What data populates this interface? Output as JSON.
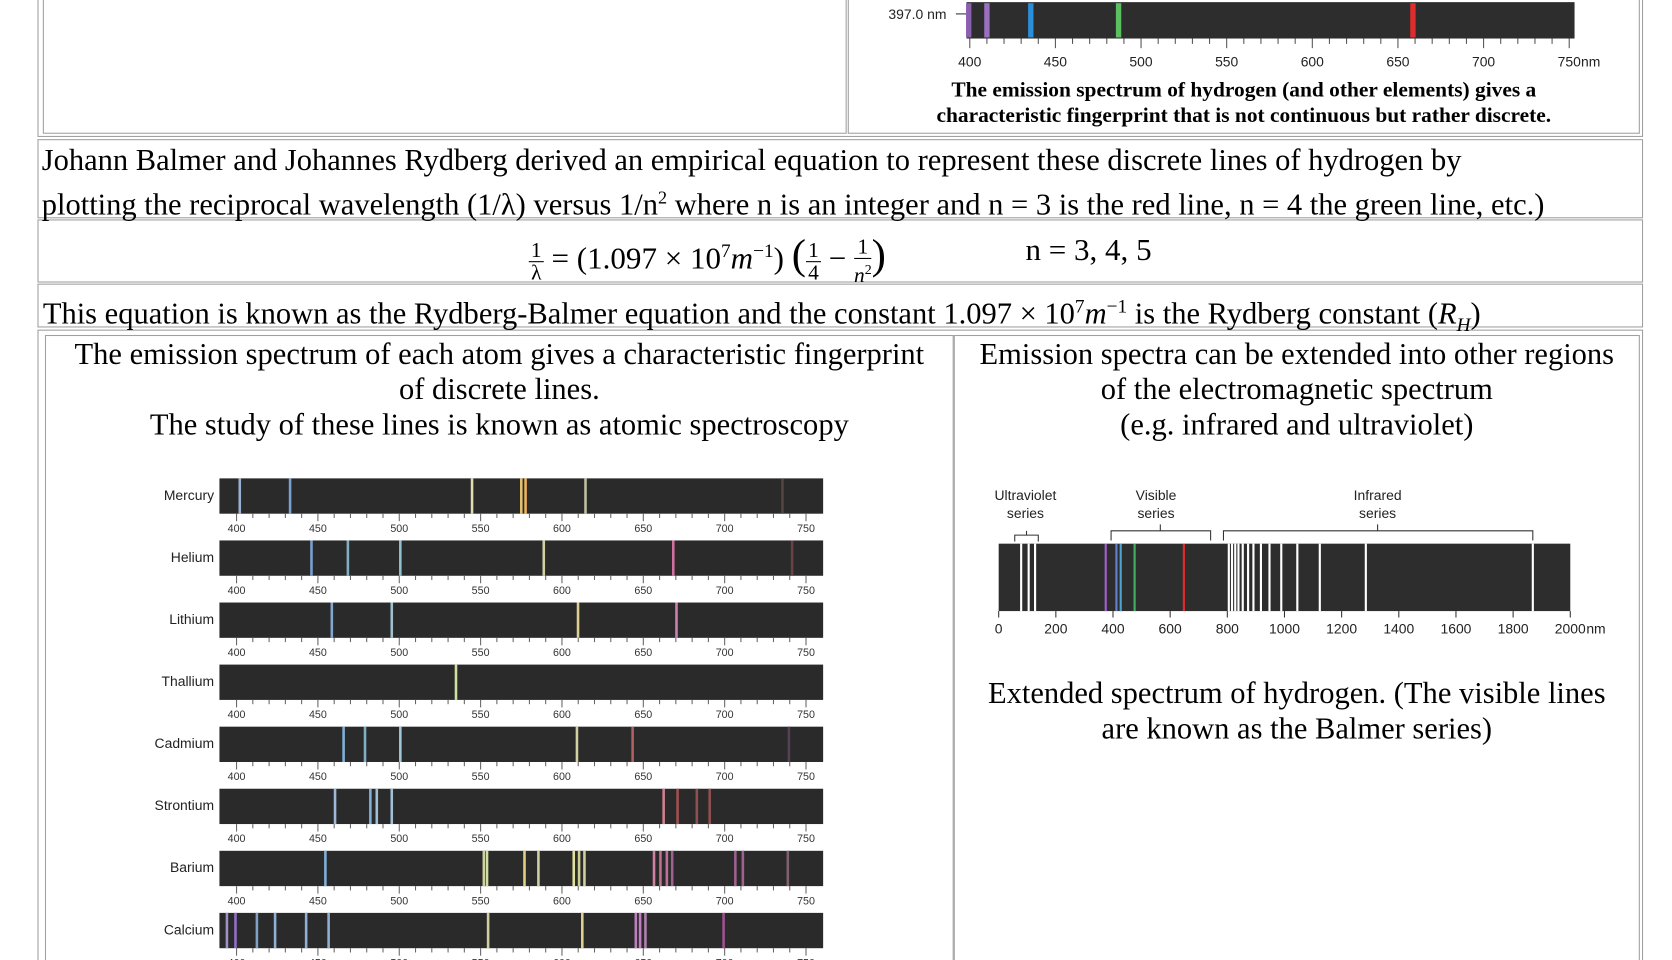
{
  "top_spectrum": {
    "marker_label": "397.0 nm",
    "ticks": [
      400,
      450,
      500,
      550,
      600,
      650,
      700,
      750
    ],
    "unit": "nm",
    "caption_lines": [
      "The emission spectrum of hydrogen (and other elements) gives a",
      "characteristic fingerprint that is not continuous but rather discrete."
    ]
  },
  "intro": {
    "line1": "Johann Balmer and Johannes Rydberg derived an empirical equation to represent these discrete lines of hydrogen by",
    "line2_before": "plotting the reciprocal wavelength (1/λ) versus 1/n",
    "line2_sup": "2",
    "line2_after": " where n is an integer and n = 3 is the red line, n = 4 the green line, etc.)"
  },
  "equation": {
    "lhs_num": "1",
    "lhs_den": "λ",
    "equals": "=",
    "constant": "(1.097 × 10",
    "constant_exp": "7",
    "unit": "m",
    "unit_exp": "−1",
    "constant_close": ")",
    "paren_open": "(",
    "frac1_num": "1",
    "frac1_den": "4",
    "minus": "−",
    "frac2_num": "1",
    "frac2_den": "n",
    "frac2_exp": "2",
    "paren_close": ")",
    "n_values": "n = 3, 4, 5"
  },
  "rydberg": {
    "before": "This equation is known as the Rydberg-Balmer equation and the constant 1.097 × 10",
    "exp": "7",
    "unit": "m",
    "unit_exp": "−1",
    "middle": " is the Rydberg constant (",
    "symbol": "R",
    "symbol_sub": "H",
    "after": ")"
  },
  "left_heading": [
    "The emission spectrum of each atom gives a characteristic fingerprint",
    "of discrete lines.",
    "The study of these lines is known as atomic spectroscopy"
  ],
  "right_heading": [
    "Emission spectra can be extended into other regions",
    "of the electromagnetic spectrum",
    "(e.g. infrared and ultraviolet)"
  ],
  "elements": [
    "Mercury",
    "Helium",
    "Lithium",
    "Thallium",
    "Cadmium",
    "Strontium",
    "Barium",
    "Calcium"
  ],
  "element_ticks": [
    400,
    450,
    500,
    550,
    600,
    650,
    700,
    750
  ],
  "extended": {
    "series": [
      {
        "lines": [
          "Ultraviolet",
          "series"
        ]
      },
      {
        "lines": [
          "Visible",
          "series"
        ]
      },
      {
        "lines": [
          "Infrared",
          "series"
        ]
      }
    ],
    "ticks": [
      0,
      200,
      400,
      600,
      800,
      1000,
      1200,
      1400,
      1600,
      1800,
      2000
    ],
    "unit": "nm",
    "caption_lines": [
      "Extended spectrum of hydrogen. (The visible lines",
      "are known as the Balmer series)"
    ]
  }
}
